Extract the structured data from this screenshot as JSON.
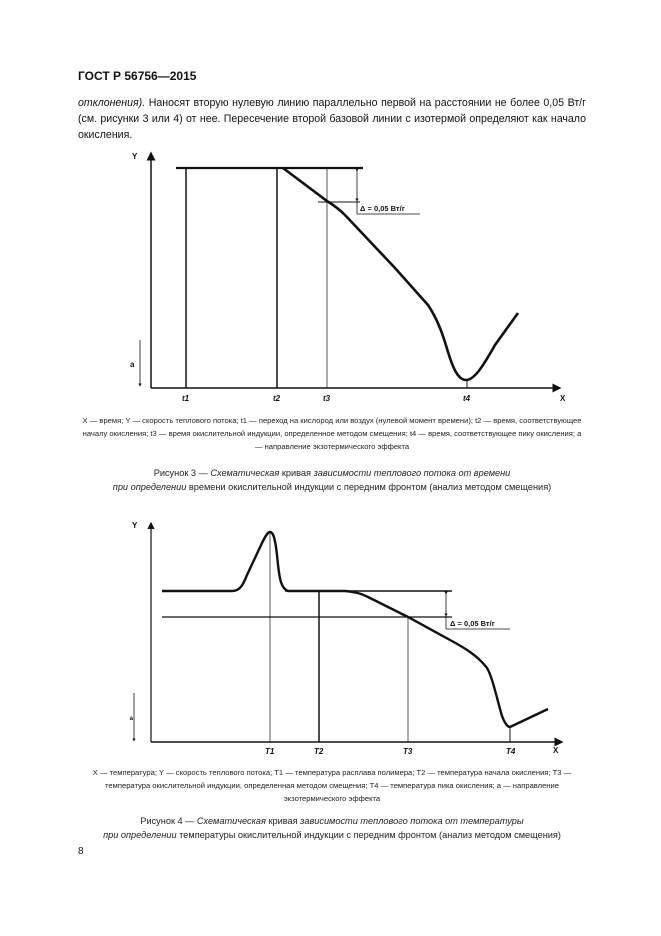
{
  "header": {
    "doc_number": "ГОСТ Р 56756—2015"
  },
  "paragraph": {
    "italic_start": "отклонения).",
    "text": " Наносят вторую нулевую линию параллельно первой на расстоянии не более 0,05 Вт/г (см. рисунки 3 или 4) от нее. Пересечение второй базовой линии с изотермой определяют как начало окисления."
  },
  "figure3": {
    "labels": {
      "y": "Y",
      "x": "X",
      "a": "а",
      "t1": "t1",
      "t2": "t2",
      "t3": "t3",
      "t4": "t4",
      "delta": "Δ = 0,05 Вт/г"
    },
    "legend": "X — время; Y — скорость теплового потока; t1 — переход на кислород или воздух (нулевой момент времени); t2 — время, соответствующее началу окисления; t3 — время окислительной индукции, определенное методом смещения; t4 — время, соответствующее пику окисления; a — направление экзотермического эффекта",
    "caption": {
      "prefix": "Рисунок 3 — ",
      "italic1": "Схематическая",
      "mid1": " кривая ",
      "italic2": "зависимости теплового потока от времени",
      "break_italic": "при определении",
      "rest": " времени окислительной индукции с передним фронтом (анализ методом смещения)"
    }
  },
  "figure4": {
    "labels": {
      "y": "Y",
      "x": "X",
      "a": "а",
      "T1": "T1",
      "T2": "T2",
      "T3": "T3",
      "T4": "T4",
      "delta": "Δ = 0,05 Вт/г"
    },
    "legend": "X — температура; Y — скорость теплового потока; T1 — температура расплава полимера; T2 — температура начала окисления; T3 — температура окислительной индукции, определенная методом смещения; T4 — температура пика окисления; а — направление экзотермического эффекта",
    "caption": {
      "prefix": "Рисунок 4 — ",
      "italic1": "Схематическая",
      "mid1": " кривая ",
      "italic2": "зависимости теплового потока от температуры",
      "break_italic": "при определении",
      "rest": " температуры окислительной индукции с передним фронтом (анализ методом смещения)"
    }
  },
  "page_number": "8"
}
